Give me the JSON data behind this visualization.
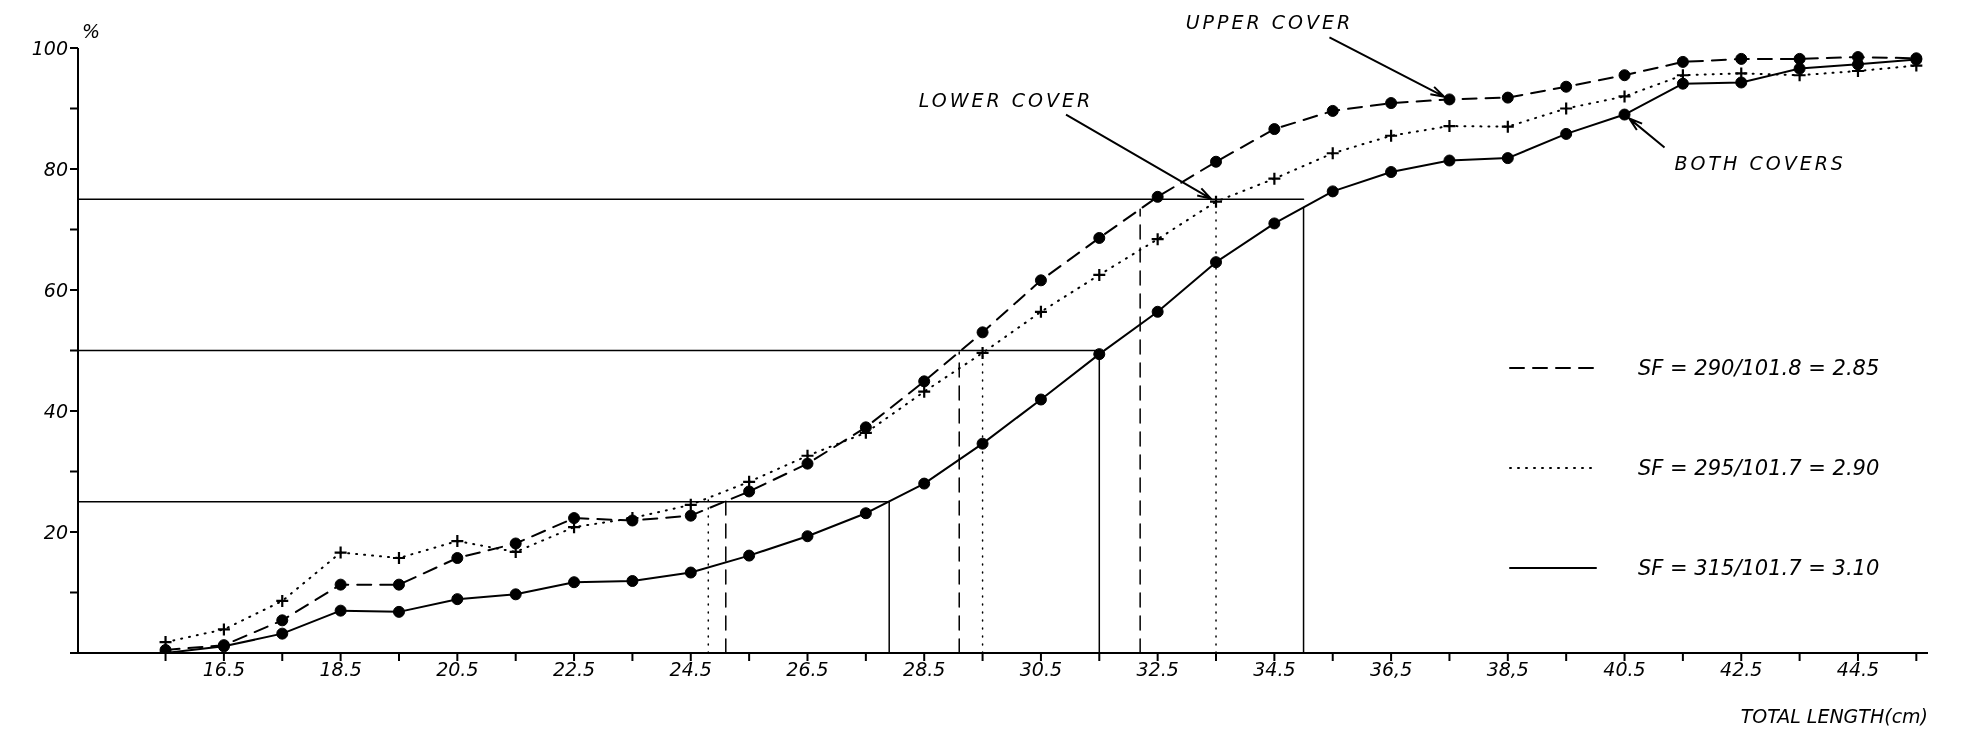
{
  "chart_data": {
    "type": "line",
    "xlabel": "TOTAL LENGTH(cm)",
    "ylabel": "%",
    "x": [
      15.5,
      16.5,
      17.5,
      18.5,
      19.5,
      20.5,
      21.5,
      22.5,
      23.5,
      24.5,
      25.5,
      26.5,
      27.5,
      28.5,
      29.5,
      30.5,
      31.5,
      32.5,
      33.5,
      34.5,
      35.5,
      36.5,
      37.5,
      38.5,
      39.5,
      40.5,
      41.5,
      42.5,
      43.5,
      44.5,
      45.5
    ],
    "series": [
      {
        "name": "SF = 290/101.8 = 2.85",
        "color": "#000000",
        "marker": "circle",
        "line_style": "dashed",
        "values": [
          0.5,
          1.3,
          5.4,
          11.3,
          11.3,
          15.7,
          18.1,
          22.3,
          21.9,
          22.7,
          26.7,
          31.3,
          37.3,
          44.9,
          53.0,
          61.6,
          68.6,
          75.4,
          81.2,
          86.6,
          89.6,
          90.9,
          91.5,
          91.8,
          93.6,
          95.5,
          97.7,
          98.2,
          98.2,
          98.5,
          98.3
        ]
      },
      {
        "name": "SF = 295/101.7 = 2.90",
        "color": "#000000",
        "marker": "cross",
        "line_style": "dotted",
        "values": [
          1.8,
          3.9,
          8.6,
          16.6,
          15.7,
          18.5,
          16.7,
          20.8,
          22.3,
          24.5,
          28.3,
          32.6,
          36.4,
          43.2,
          49.6,
          56.4,
          62.5,
          68.4,
          74.6,
          78.4,
          82.6,
          85.5,
          87.1,
          87.0,
          90.0,
          92.0,
          95.5,
          95.8,
          95.5,
          96.2,
          97.1
        ]
      },
      {
        "name": "SF = 315/101.7 = 3.10",
        "color": "#000000",
        "marker": "circle",
        "line_style": "solid",
        "values": [
          0.0,
          1.1,
          3.2,
          7.0,
          6.8,
          8.9,
          9.7,
          11.7,
          11.9,
          13.3,
          16.1,
          19.3,
          23.1,
          28.0,
          34.6,
          41.9,
          49.4,
          56.4,
          64.6,
          71.0,
          76.3,
          79.5,
          81.4,
          81.8,
          85.8,
          89.0,
          94.1,
          94.3,
          96.6,
          97.3,
          98.1
        ]
      }
    ],
    "ref_lines": [
      {
        "axis": "y",
        "value": 25,
        "color": "#000000",
        "line_style": "solid"
      },
      {
        "axis": "y",
        "value": 50,
        "color": "#000000",
        "line_style": "solid"
      },
      {
        "axis": "y",
        "value": 75,
        "color": "#000000",
        "line_style": "solid"
      },
      {
        "axis": "x",
        "value": 25.1,
        "color": "#000000",
        "line_style": "dashed"
      },
      {
        "axis": "x",
        "value": 29.1,
        "color": "#000000",
        "line_style": "dashed"
      },
      {
        "axis": "x",
        "value": 32.2,
        "color": "#000000",
        "line_style": "dashed"
      },
      {
        "axis": "x",
        "value": 24.8,
        "color": "#000000",
        "line_style": "dotted"
      },
      {
        "axis": "x",
        "value": 29.5,
        "color": "#000000",
        "line_style": "dotted"
      },
      {
        "axis": "x",
        "value": 33.5,
        "color": "#000000",
        "line_style": "dotted"
      },
      {
        "axis": "x",
        "value": 27.9,
        "color": "#000000",
        "line_style": "solid"
      },
      {
        "axis": "x",
        "value": 31.5,
        "color": "#000000",
        "line_style": "solid"
      },
      {
        "axis": "x",
        "value": 35.0,
        "color": "#000000",
        "line_style": "solid"
      }
    ],
    "annotations": [
      {
        "text": "UPPER COVER",
        "x": 37.5,
        "y": 91.5
      },
      {
        "text": "LOWER COVER",
        "x": 33.5,
        "y": 74.6
      },
      {
        "text": "BOTH COVERS",
        "x": 40.5,
        "y": 89.0
      }
    ],
    "xlim": [
      14,
      45.7
    ],
    "xticks": [
      {
        "value": 15.5,
        "label": null
      },
      16.5,
      {
        "value": 17.5,
        "label": null
      },
      18.5,
      {
        "value": 19.5,
        "label": null
      },
      20.5,
      {
        "value": 21.5,
        "label": null
      },
      22.5,
      {
        "value": 23.5,
        "label": null
      },
      24.5,
      {
        "value": 25.5,
        "label": null
      },
      26.5,
      {
        "value": 27.5,
        "label": null
      },
      28.5,
      {
        "value": 29.5,
        "label": null
      },
      30.5,
      {
        "value": 31.5,
        "label": null
      },
      32.5,
      {
        "value": 33.5,
        "label": null
      },
      34.5,
      {
        "value": 35.5,
        "label": null
      },
      {
        "value": 36.5,
        "label": "36,5"
      },
      {
        "value": 37.5,
        "label": null
      },
      {
        "value": 38.5,
        "label": "38,5"
      },
      {
        "value": 39.5,
        "label": null
      },
      40.5,
      {
        "value": 41.5,
        "label": null
      },
      42.5,
      {
        "value": 43.5,
        "label": null
      },
      44.5,
      {
        "value": 45.5,
        "label": null
      }
    ],
    "ylim": [
      0,
      100
    ],
    "yticks": [
      {
        "value": 0,
        "label": null
      },
      {
        "value": 10,
        "label": null
      },
      20,
      {
        "value": 30,
        "label": null
      },
      40,
      {
        "value": 50,
        "label": null
      },
      60,
      {
        "value": 70,
        "label": null
      },
      80,
      {
        "value": 90,
        "label": null
      },
      100
    ],
    "legend": "right"
  }
}
